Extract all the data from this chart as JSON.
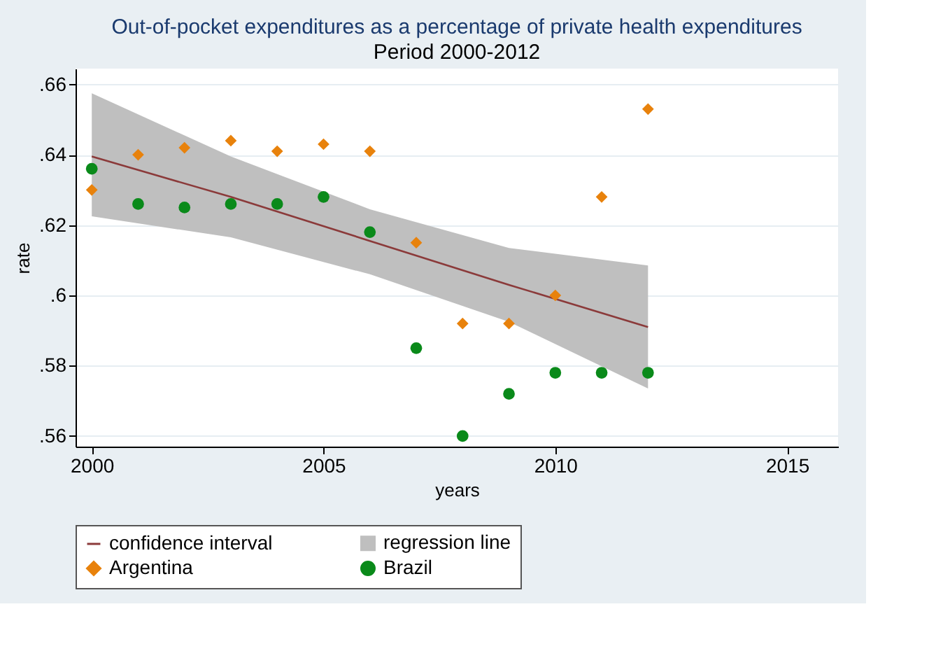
{
  "chart_data": {
    "type": "scatter",
    "title": "Out-of-pocket expenditures as a percentage of private health expenditures",
    "subtitle": "Period 2000-2012",
    "xlabel": "years",
    "ylabel": "rate",
    "xlim": [
      1999.65,
      2016.1
    ],
    "xticks": [
      2000,
      2005,
      2010,
      2015
    ],
    "ylim": [
      0.557,
      0.6645
    ],
    "yticks": [
      {
        "value": 0.56,
        "label": ".56"
      },
      {
        "value": 0.58,
        "label": ".58"
      },
      {
        "value": 0.6,
        "label": ".6"
      },
      {
        "value": 0.62,
        "label": ".62"
      },
      {
        "value": 0.64,
        "label": ".64"
      },
      {
        "value": 0.66,
        "label": ".66"
      }
    ],
    "grid": "y",
    "legend": "bottom",
    "series": [
      {
        "name": "confidence interval",
        "type": "line",
        "color": "#8b3a3a",
        "marker": "none",
        "x": [
          2000,
          2003,
          2006,
          2009,
          2012
        ],
        "values": [
          0.6395,
          0.628,
          0.6155,
          0.603,
          0.591
        ],
        "lower": [
          0.6225,
          0.6165,
          0.606,
          0.5925,
          0.5735
        ],
        "upper": [
          0.6575,
          0.6395,
          0.6245,
          0.6135,
          0.6085
        ]
      },
      {
        "name": "regression line",
        "type": "area",
        "color": "#bfbfbf"
      },
      {
        "name": "Argentina",
        "marker": "diamond",
        "color": "#e8820c",
        "x": [
          2000,
          2001,
          2002,
          2003,
          2004,
          2005,
          2006,
          2007,
          2008,
          2009,
          2010,
          2011,
          2012
        ],
        "values": [
          0.63,
          0.64,
          0.642,
          0.644,
          0.641,
          0.643,
          0.641,
          0.615,
          0.592,
          0.592,
          0.6,
          0.628,
          0.653
        ]
      },
      {
        "name": "Brazil",
        "marker": "circle",
        "color": "#0a8a1a",
        "x": [
          2000,
          2001,
          2002,
          2003,
          2004,
          2005,
          2006,
          2007,
          2008,
          2009,
          2010,
          2011,
          2012
        ],
        "values": [
          0.636,
          0.626,
          0.625,
          0.626,
          0.626,
          0.628,
          0.618,
          0.585,
          0.56,
          0.572,
          0.578,
          0.578,
          0.578
        ]
      }
    ]
  }
}
